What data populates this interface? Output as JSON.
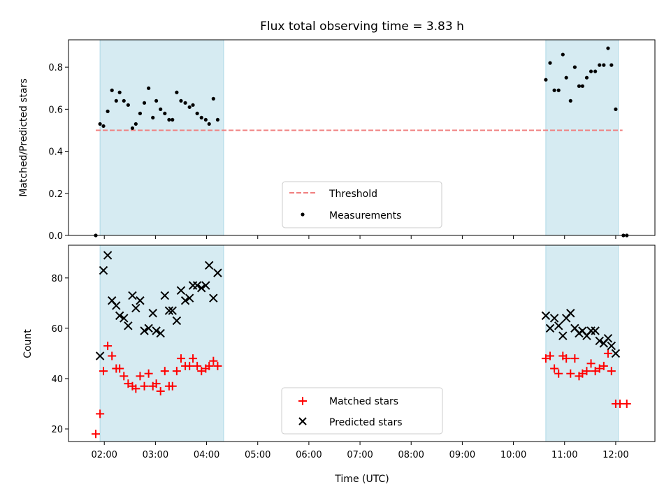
{
  "chart_data": [
    {
      "type": "scatter",
      "title": "Flux total observing time = 3.83 h",
      "xlabel": "",
      "ylabel": "Matched/Predicted stars",
      "ylim": [
        0.0,
        0.93
      ],
      "xlim": [
        "01:18",
        "12:46"
      ],
      "yticks": [
        "0.0",
        "0.2",
        "0.4",
        "0.6",
        "0.8"
      ],
      "yticks_values": [
        0.0,
        0.2,
        0.4,
        0.6,
        0.8
      ],
      "shaded_intervals": [
        [
          "01:55",
          "04:20"
        ],
        [
          "10:38",
          "12:03"
        ]
      ],
      "shade_color": "#add8e6",
      "threshold": {
        "name": "Threshold",
        "y": 0.5,
        "x_range": [
          "01:50",
          "12:08"
        ],
        "color": "#f07f7f"
      },
      "legend": {
        "position": "bottom-center",
        "entries": [
          "Threshold",
          "Measurements"
        ]
      },
      "series": [
        {
          "name": "Measurements",
          "color": "#000000",
          "points": [
            [
              "01:50",
              0.0
            ],
            [
              "01:55",
              0.53
            ],
            [
              "01:59",
              0.52
            ],
            [
              "02:04",
              0.59
            ],
            [
              "02:09",
              0.69
            ],
            [
              "02:14",
              0.64
            ],
            [
              "02:18",
              0.68
            ],
            [
              "02:23",
              0.64
            ],
            [
              "02:28",
              0.62
            ],
            [
              "02:33",
              0.51
            ],
            [
              "02:37",
              0.53
            ],
            [
              "02:42",
              0.58
            ],
            [
              "02:47",
              0.63
            ],
            [
              "02:52",
              0.7
            ],
            [
              "02:57",
              0.56
            ],
            [
              "03:01",
              0.64
            ],
            [
              "03:06",
              0.6
            ],
            [
              "03:11",
              0.58
            ],
            [
              "03:16",
              0.55
            ],
            [
              "03:20",
              0.55
            ],
            [
              "03:25",
              0.68
            ],
            [
              "03:30",
              0.64
            ],
            [
              "03:35",
              0.63
            ],
            [
              "03:40",
              0.61
            ],
            [
              "03:44",
              0.62
            ],
            [
              "03:49",
              0.58
            ],
            [
              "03:54",
              0.56
            ],
            [
              "03:59",
              0.55
            ],
            [
              "04:03",
              0.53
            ],
            [
              "04:08",
              0.65
            ],
            [
              "04:13",
              0.55
            ],
            [
              "10:38",
              0.74
            ],
            [
              "10:43",
              0.82
            ],
            [
              "10:48",
              0.69
            ],
            [
              "10:53",
              0.69
            ],
            [
              "10:58",
              0.86
            ],
            [
              "11:02",
              0.75
            ],
            [
              "11:07",
              0.64
            ],
            [
              "11:12",
              0.8
            ],
            [
              "11:17",
              0.71
            ],
            [
              "11:21",
              0.71
            ],
            [
              "11:26",
              0.75
            ],
            [
              "11:31",
              0.78
            ],
            [
              "11:36",
              0.78
            ],
            [
              "11:41",
              0.81
            ],
            [
              "11:46",
              0.81
            ],
            [
              "11:51",
              0.89
            ],
            [
              "11:55",
              0.81
            ],
            [
              "12:00",
              0.6
            ],
            [
              "12:09",
              0.0
            ],
            [
              "12:13",
              0.0
            ]
          ]
        }
      ]
    },
    {
      "type": "scatter",
      "title": "",
      "xlabel": "Time (UTC)",
      "ylabel": "Count",
      "ylim": [
        15,
        93
      ],
      "xlim": [
        "01:18",
        "12:46"
      ],
      "xticks": [
        "02:00",
        "03:00",
        "04:00",
        "05:00",
        "06:00",
        "07:00",
        "08:00",
        "09:00",
        "10:00",
        "11:00",
        "12:00"
      ],
      "yticks": [
        "20",
        "40",
        "60",
        "80"
      ],
      "yticks_values": [
        20,
        40,
        60,
        80
      ],
      "shaded_intervals": [
        [
          "01:55",
          "04:20"
        ],
        [
          "10:38",
          "12:03"
        ]
      ],
      "shade_color": "#add8e6",
      "legend": {
        "position": "bottom-center",
        "entries": [
          "Matched stars",
          "Predicted stars"
        ]
      },
      "series": [
        {
          "name": "Matched stars",
          "color": "#ff0000",
          "marker": "plus",
          "points": [
            [
              "01:50",
              18
            ],
            [
              "01:55",
              26
            ],
            [
              "01:59",
              43
            ],
            [
              "02:04",
              53
            ],
            [
              "02:09",
              49
            ],
            [
              "02:14",
              44
            ],
            [
              "02:18",
              44
            ],
            [
              "02:23",
              41
            ],
            [
              "02:28",
              38
            ],
            [
              "02:33",
              37
            ],
            [
              "02:37",
              36
            ],
            [
              "02:42",
              41
            ],
            [
              "02:47",
              37
            ],
            [
              "02:52",
              42
            ],
            [
              "02:57",
              37
            ],
            [
              "03:01",
              38
            ],
            [
              "03:06",
              35
            ],
            [
              "03:11",
              43
            ],
            [
              "03:16",
              37
            ],
            [
              "03:20",
              37
            ],
            [
              "03:25",
              43
            ],
            [
              "03:30",
              48
            ],
            [
              "03:35",
              45
            ],
            [
              "03:40",
              45
            ],
            [
              "03:44",
              48
            ],
            [
              "03:49",
              45
            ],
            [
              "03:54",
              43
            ],
            [
              "03:59",
              44
            ],
            [
              "04:03",
              45
            ],
            [
              "04:08",
              47
            ],
            [
              "04:13",
              45
            ],
            [
              "10:38",
              48
            ],
            [
              "10:43",
              49
            ],
            [
              "10:48",
              44
            ],
            [
              "10:53",
              42
            ],
            [
              "10:58",
              49
            ],
            [
              "11:02",
              48
            ],
            [
              "11:07",
              42
            ],
            [
              "11:12",
              48
            ],
            [
              "11:17",
              41
            ],
            [
              "11:21",
              42
            ],
            [
              "11:26",
              43
            ],
            [
              "11:31",
              46
            ],
            [
              "11:36",
              43
            ],
            [
              "11:41",
              44
            ],
            [
              "11:46",
              45
            ],
            [
              "11:51",
              50
            ],
            [
              "11:55",
              43
            ],
            [
              "12:00",
              30
            ],
            [
              "12:05",
              30
            ],
            [
              "12:13",
              30
            ]
          ]
        },
        {
          "name": "Predicted stars",
          "color": "#000000",
          "marker": "x",
          "points": [
            [
              "01:55",
              49
            ],
            [
              "01:59",
              83
            ],
            [
              "02:04",
              89
            ],
            [
              "02:09",
              71
            ],
            [
              "02:14",
              69
            ],
            [
              "02:18",
              65
            ],
            [
              "02:23",
              64
            ],
            [
              "02:28",
              61
            ],
            [
              "02:33",
              73
            ],
            [
              "02:37",
              68
            ],
            [
              "02:42",
              71
            ],
            [
              "02:47",
              59
            ],
            [
              "02:52",
              60
            ],
            [
              "02:57",
              66
            ],
            [
              "03:01",
              59
            ],
            [
              "03:06",
              58
            ],
            [
              "03:11",
              73
            ],
            [
              "03:16",
              67
            ],
            [
              "03:20",
              67
            ],
            [
              "03:25",
              63
            ],
            [
              "03:30",
              75
            ],
            [
              "03:35",
              71
            ],
            [
              "03:40",
              72
            ],
            [
              "03:44",
              77
            ],
            [
              "03:49",
              77
            ],
            [
              "03:54",
              76
            ],
            [
              "03:59",
              77
            ],
            [
              "04:03",
              85
            ],
            [
              "04:08",
              72
            ],
            [
              "04:13",
              82
            ],
            [
              "10:38",
              65
            ],
            [
              "10:43",
              60
            ],
            [
              "10:48",
              64
            ],
            [
              "10:53",
              61
            ],
            [
              "10:58",
              57
            ],
            [
              "11:02",
              64
            ],
            [
              "11:07",
              66
            ],
            [
              "11:12",
              60
            ],
            [
              "11:17",
              58
            ],
            [
              "11:21",
              59
            ],
            [
              "11:26",
              57
            ],
            [
              "11:31",
              59
            ],
            [
              "11:36",
              59
            ],
            [
              "11:41",
              55
            ],
            [
              "11:46",
              54
            ],
            [
              "11:51",
              56
            ],
            [
              "11:55",
              53
            ],
            [
              "12:00",
              50
            ]
          ]
        }
      ]
    }
  ]
}
